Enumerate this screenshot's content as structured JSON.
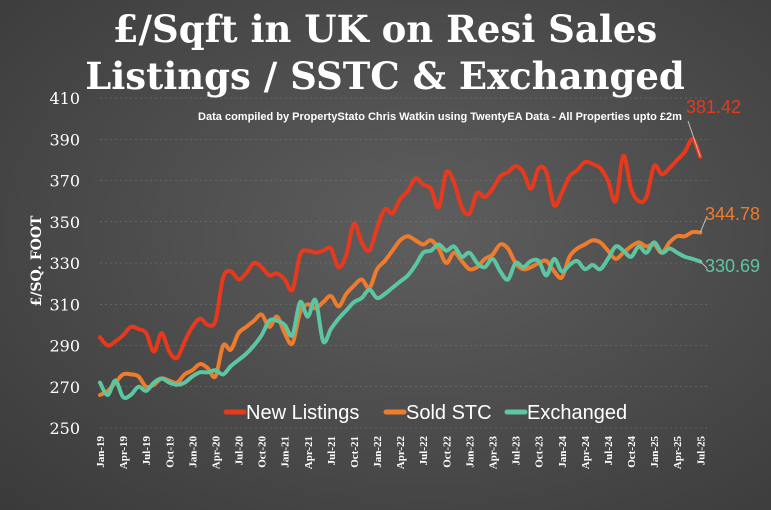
{
  "chart_data": {
    "type": "line",
    "title_line1": "£/Sqft in UK on Resi Sales",
    "title_line2": "Listings / SSTC & Exchanged",
    "subtitle": "Data compiled by PropertyStato Chris Watkin using TwentyEA Data - All Properties upto £2m",
    "ylabel": "£/SQ. FOOT",
    "ylim": [
      250,
      410
    ],
    "yticks": [
      250,
      270,
      290,
      310,
      330,
      350,
      370,
      390,
      410
    ],
    "xlim": [
      0,
      79
    ],
    "xticks": [
      {
        "label": "Jan-19",
        "i": 0
      },
      {
        "label": "Apr-19",
        "i": 3
      },
      {
        "label": "Jul-19",
        "i": 6
      },
      {
        "label": "Oct-19",
        "i": 9
      },
      {
        "label": "Jan-20",
        "i": 12
      },
      {
        "label": "Apr-20",
        "i": 15
      },
      {
        "label": "Jul-20",
        "i": 18
      },
      {
        "label": "Oct-20",
        "i": 21
      },
      {
        "label": "Jan-21",
        "i": 24
      },
      {
        "label": "Apr-21",
        "i": 27
      },
      {
        "label": "Jul-21",
        "i": 30
      },
      {
        "label": "Oct-21",
        "i": 33
      },
      {
        "label": "Jan-22",
        "i": 36
      },
      {
        "label": "Apr-22",
        "i": 39
      },
      {
        "label": "Jul-22",
        "i": 42
      },
      {
        "label": "Oct-22",
        "i": 45
      },
      {
        "label": "Jan-23",
        "i": 48
      },
      {
        "label": "Apr-23",
        "i": 51
      },
      {
        "label": "Jul-23",
        "i": 54
      },
      {
        "label": "Oct-23",
        "i": 57
      },
      {
        "label": "Jan-24",
        "i": 60
      },
      {
        "label": "Apr-24",
        "i": 63
      },
      {
        "label": "Jul-24",
        "i": 66
      },
      {
        "label": "Oct-24",
        "i": 69
      },
      {
        "label": "Jan-25",
        "i": 72
      },
      {
        "label": "Apr-25",
        "i": 75
      },
      {
        "label": "Jul-25",
        "i": 78
      }
    ],
    "legend_placement": "bottom-center",
    "series": [
      {
        "name": "New Listings",
        "color": "#e8391d",
        "end_label": "381.42",
        "values": [
          294,
          290,
          292,
          295,
          299,
          298,
          296,
          287,
          296,
          287,
          284,
          292,
          299,
          303,
          300,
          302,
          323,
          326,
          322,
          325,
          330,
          328,
          324,
          325,
          322,
          317,
          334,
          336,
          335,
          336,
          337,
          328,
          334,
          349,
          340,
          336,
          347,
          356,
          354,
          361,
          365,
          371,
          368,
          366,
          357,
          374,
          369,
          357,
          354,
          364,
          362,
          366,
          372,
          374,
          377,
          374,
          366,
          376,
          374,
          358,
          364,
          372,
          375,
          379,
          378,
          376,
          370,
          360,
          382,
          366,
          360,
          362,
          377,
          373,
          376,
          380,
          384,
          390,
          381.42
        ]
      },
      {
        "name": "Sold STC",
        "color": "#ef7b2d",
        "end_label": "344.78",
        "values": [
          266,
          268,
          272,
          276,
          276,
          275,
          270,
          271,
          274,
          273,
          272,
          276,
          278,
          281,
          279,
          275,
          290,
          288,
          296,
          299,
          302,
          305,
          299,
          304,
          296,
          291,
          306,
          310,
          308,
          311,
          314,
          309,
          315,
          319,
          322,
          318,
          327,
          331,
          336,
          341,
          343,
          341,
          339,
          341,
          337,
          330,
          335,
          331,
          327,
          328,
          332,
          334,
          339,
          337,
          330,
          327,
          328,
          330,
          331,
          326,
          323,
          333,
          337,
          339,
          341,
          340,
          336,
          332,
          335,
          338,
          340,
          338,
          339,
          335,
          340,
          343,
          343,
          345,
          344.78
        ]
      },
      {
        "name": "Exchanged",
        "color": "#5cc6a0",
        "end_label": "330.69",
        "values": [
          272,
          266,
          273,
          265,
          266,
          270,
          268,
          272,
          274,
          272,
          271,
          272,
          275,
          277,
          277,
          278,
          276,
          280,
          283,
          286,
          290,
          295,
          302,
          302,
          300,
          295,
          311,
          304,
          312,
          292,
          298,
          303,
          307,
          311,
          313,
          317,
          313,
          315,
          318,
          321,
          324,
          329,
          335,
          336,
          339,
          336,
          338,
          333,
          335,
          330,
          328,
          332,
          326,
          322,
          330,
          328,
          331,
          331,
          324,
          332,
          326,
          329,
          331,
          327,
          329,
          327,
          332,
          338,
          336,
          333,
          338,
          335,
          340,
          335,
          337,
          335,
          333,
          332,
          330.69
        ]
      }
    ]
  }
}
